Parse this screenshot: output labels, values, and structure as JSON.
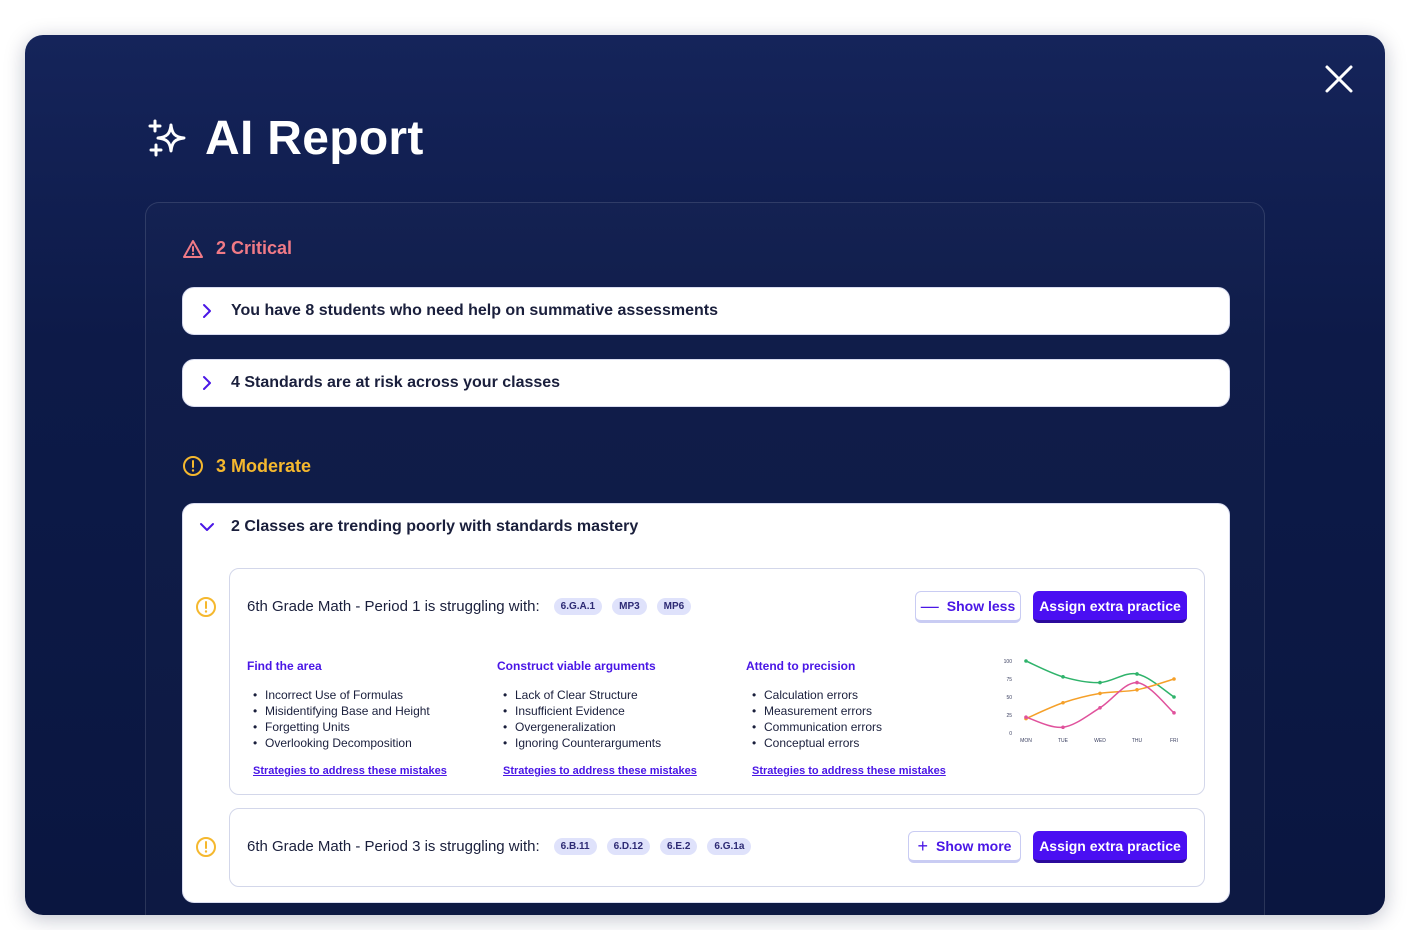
{
  "modal": {
    "title": "AI Report"
  },
  "critical": {
    "heading": "2 Critical",
    "items": [
      {
        "text": "You have 8 students who need help on summative assessments"
      },
      {
        "text": "4 Standards are at risk across your classes"
      }
    ]
  },
  "moderate": {
    "heading": "3 Moderate",
    "expanded": {
      "text": "2 Classes are trending poorly with standards mastery",
      "classes": [
        {
          "title": "6th Grade Math - Period 1 is struggling with:",
          "standards": [
            "6.G.A.1",
            "MP3",
            "MP6"
          ],
          "toggle_label": "Show less",
          "toggle_symbol": "—",
          "assign_label": "Assign extra practice",
          "columns": [
            {
              "heading": "Find the area",
              "items": [
                "Incorrect Use of Formulas",
                "Misidentifying Base and Height",
                "Forgetting Units",
                "Overlooking Decomposition"
              ],
              "link": "Strategies to address these mistakes"
            },
            {
              "heading": "Construct viable arguments",
              "items": [
                "Lack of Clear Structure",
                "Insufficient Evidence",
                "Overgeneralization",
                "Ignoring Counterarguments"
              ],
              "link": "Strategies to address these mistakes"
            },
            {
              "heading": "Attend to precision",
              "items": [
                "Calculation errors",
                "Measurement errors",
                "Communication errors",
                "Conceptual errors"
              ],
              "link": "Strategies to address these mistakes"
            }
          ]
        },
        {
          "title": "6th Grade Math - Period 3 is struggling with:",
          "standards": [
            "6.B.11",
            "6.D.12",
            "6.E.2",
            "6.G.1a"
          ],
          "toggle_label": "Show more",
          "toggle_symbol": "+",
          "assign_label": "Assign extra practice"
        }
      ]
    }
  },
  "colors": {
    "critical": "#f07a86",
    "moderate": "#f5b82e",
    "accent": "#4a0ff2",
    "green": "#2fb36b",
    "orange": "#f5a029",
    "pink": "#e0529c"
  },
  "chart_data": {
    "type": "line",
    "x": [
      "MON",
      "TUE",
      "WED",
      "THU",
      "FRI"
    ],
    "ylim": [
      0,
      100
    ],
    "yticks": [
      0,
      25,
      50,
      75,
      100
    ],
    "ytick_labels": [
      "0",
      "25",
      "50",
      "75",
      "100"
    ],
    "series": [
      {
        "color": "#2fb36b",
        "values": [
          100,
          78,
          70,
          82,
          50
        ]
      },
      {
        "color": "#f5a029",
        "values": [
          20,
          42,
          55,
          60,
          75
        ]
      },
      {
        "color": "#e0529c",
        "values": [
          22,
          8,
          35,
          70,
          28
        ]
      }
    ],
    "grid": false
  }
}
